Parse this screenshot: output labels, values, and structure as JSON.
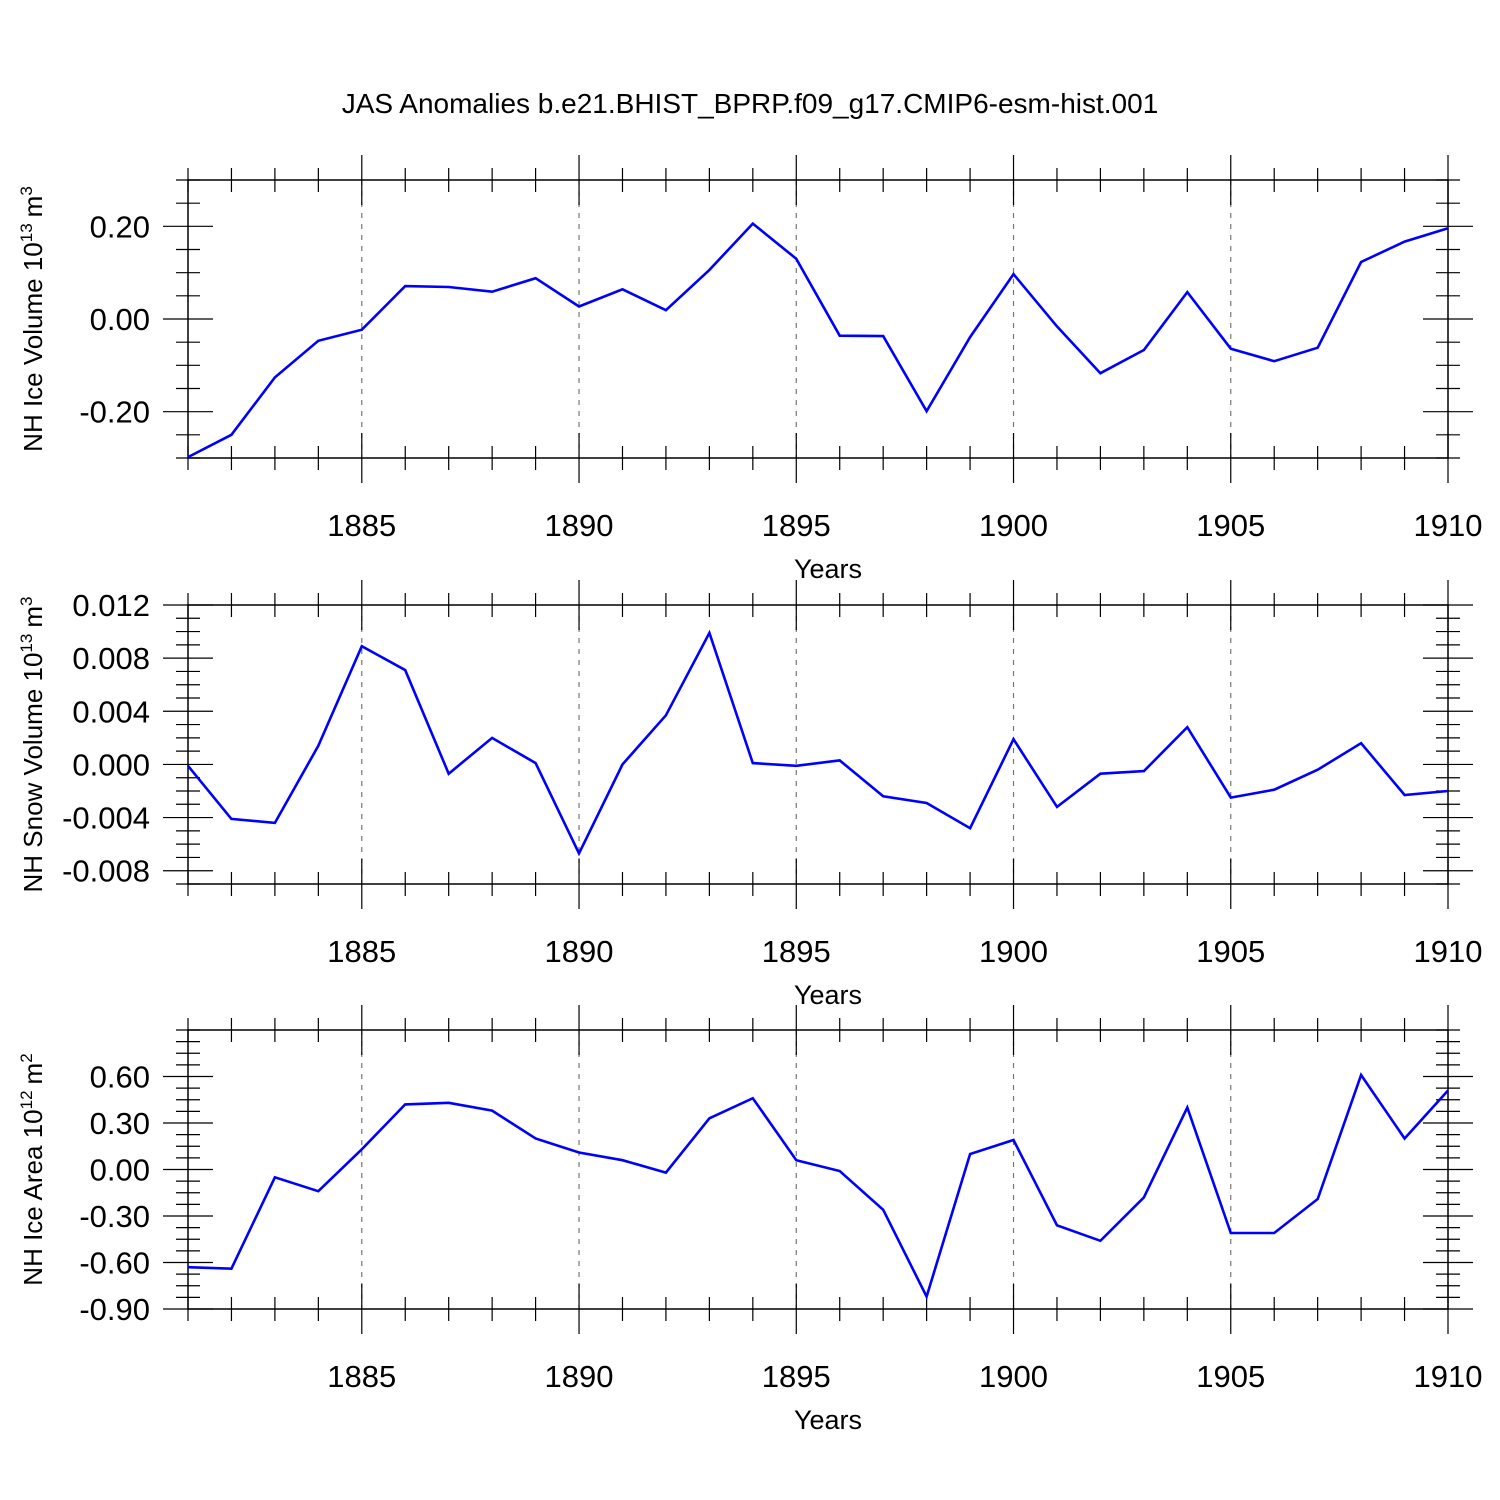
{
  "figure_title": "JAS Anomalies b.e21.BHIST_BPRP.f09_g17.CMIP6-esm-hist.001",
  "line_color": "#0000ff",
  "chart_data": [
    {
      "type": "line",
      "title": "JAS Anomalies b.e21.BHIST_BPRP.f09_g17.CMIP6-esm-hist.001",
      "xlabel": "Years",
      "ylabel_text": "NH Ice Volume 10",
      "ylabel_exp": "13",
      "ylabel_unit": "m",
      "ylabel_unit_exp": "3",
      "xlim": [
        1881,
        1910
      ],
      "ylim": [
        -0.3,
        0.3
      ],
      "x_ticks": [
        1885,
        1890,
        1895,
        1900,
        1905,
        1910
      ],
      "x_tick_labels": [
        "1885",
        "1890",
        "1895",
        "1900",
        "1905",
        "1910"
      ],
      "y_ticks": [
        -0.2,
        0.0,
        0.2
      ],
      "y_tick_labels": [
        "-0.20",
        "0.00",
        "0.20"
      ],
      "y_minor_step": 0.05,
      "x": [
        1881,
        1882,
        1883,
        1884,
        1885,
        1886,
        1887,
        1888,
        1889,
        1890,
        1891,
        1892,
        1893,
        1894,
        1895,
        1896,
        1897,
        1898,
        1899,
        1900,
        1901,
        1902,
        1903,
        1904,
        1905,
        1906,
        1907,
        1908,
        1909,
        1910
      ],
      "series": [
        {
          "name": "NH Ice Volume",
          "values": [
            -0.298,
            -0.25,
            -0.126,
            -0.047,
            -0.023,
            0.071,
            0.069,
            0.059,
            0.088,
            0.027,
            0.064,
            0.019,
            0.106,
            0.206,
            0.13,
            -0.036,
            -0.037,
            -0.199,
            -0.039,
            0.097,
            -0.016,
            -0.117,
            -0.067,
            0.058,
            -0.064,
            -0.091,
            -0.062,
            0.123,
            0.167,
            0.196
          ]
        }
      ]
    },
    {
      "type": "line",
      "xlabel": "Years",
      "ylabel_text": "NH Snow Volume 10",
      "ylabel_exp": "13",
      "ylabel_unit": "m",
      "ylabel_unit_exp": "3",
      "xlim": [
        1881,
        1910
      ],
      "ylim": [
        -0.009,
        0.012
      ],
      "x_ticks": [
        1885,
        1890,
        1895,
        1900,
        1905,
        1910
      ],
      "x_tick_labels": [
        "1885",
        "1890",
        "1895",
        "1900",
        "1905",
        "1910"
      ],
      "y_ticks": [
        -0.008,
        -0.004,
        0.0,
        0.004,
        0.008,
        0.012
      ],
      "y_tick_labels": [
        "-0.008",
        "-0.004",
        "0.000",
        "0.004",
        "0.008",
        "0.012"
      ],
      "y_minor_step": 0.001,
      "x": [
        1881,
        1882,
        1883,
        1884,
        1885,
        1886,
        1887,
        1888,
        1889,
        1890,
        1891,
        1892,
        1893,
        1894,
        1895,
        1896,
        1897,
        1898,
        1899,
        1900,
        1901,
        1902,
        1903,
        1904,
        1905,
        1906,
        1907,
        1908,
        1909,
        1910
      ],
      "series": [
        {
          "name": "NH Snow Volume",
          "values": [
            -0.0001,
            -0.0041,
            -0.0044,
            0.0014,
            0.0089,
            0.0071,
            -0.0007,
            0.002,
            0.0001,
            -0.0067,
            0.0,
            0.0037,
            0.0099,
            0.0001,
            -0.0001,
            0.0003,
            -0.0024,
            -0.0029,
            -0.0048,
            0.0019,
            -0.0032,
            -0.0007,
            -0.0005,
            0.0028,
            -0.0025,
            -0.0019,
            -0.0004,
            0.0016,
            -0.0023,
            -0.002
          ]
        }
      ]
    },
    {
      "type": "line",
      "xlabel": "Years",
      "ylabel_text": "NH Ice Area 10",
      "ylabel_exp": "12",
      "ylabel_unit": "m",
      "ylabel_unit_exp": "2",
      "xlim": [
        1881,
        1910
      ],
      "ylim": [
        -0.9,
        0.9
      ],
      "x_ticks": [
        1885,
        1890,
        1895,
        1900,
        1905,
        1910
      ],
      "x_tick_labels": [
        "1885",
        "1890",
        "1895",
        "1900",
        "1905",
        "1910"
      ],
      "y_ticks": [
        -0.9,
        -0.6,
        -0.3,
        0.0,
        0.3,
        0.6
      ],
      "y_tick_labels": [
        "-0.90",
        "-0.60",
        "-0.30",
        "0.00",
        "0.30",
        "0.60"
      ],
      "y_minor_step": 0.075,
      "x": [
        1881,
        1882,
        1883,
        1884,
        1885,
        1886,
        1887,
        1888,
        1889,
        1890,
        1891,
        1892,
        1893,
        1894,
        1895,
        1896,
        1897,
        1898,
        1899,
        1900,
        1901,
        1902,
        1903,
        1904,
        1905,
        1906,
        1907,
        1908,
        1909,
        1910
      ],
      "series": [
        {
          "name": "NH Ice Area",
          "values": [
            -0.63,
            -0.64,
            -0.05,
            -0.14,
            0.13,
            0.42,
            0.43,
            0.38,
            0.2,
            0.11,
            0.06,
            -0.02,
            0.33,
            0.46,
            0.06,
            -0.01,
            -0.26,
            -0.82,
            0.1,
            0.19,
            -0.36,
            -0.46,
            -0.18,
            0.4,
            -0.41,
            -0.41,
            -0.19,
            0.61,
            0.2,
            0.51
          ]
        }
      ]
    }
  ]
}
